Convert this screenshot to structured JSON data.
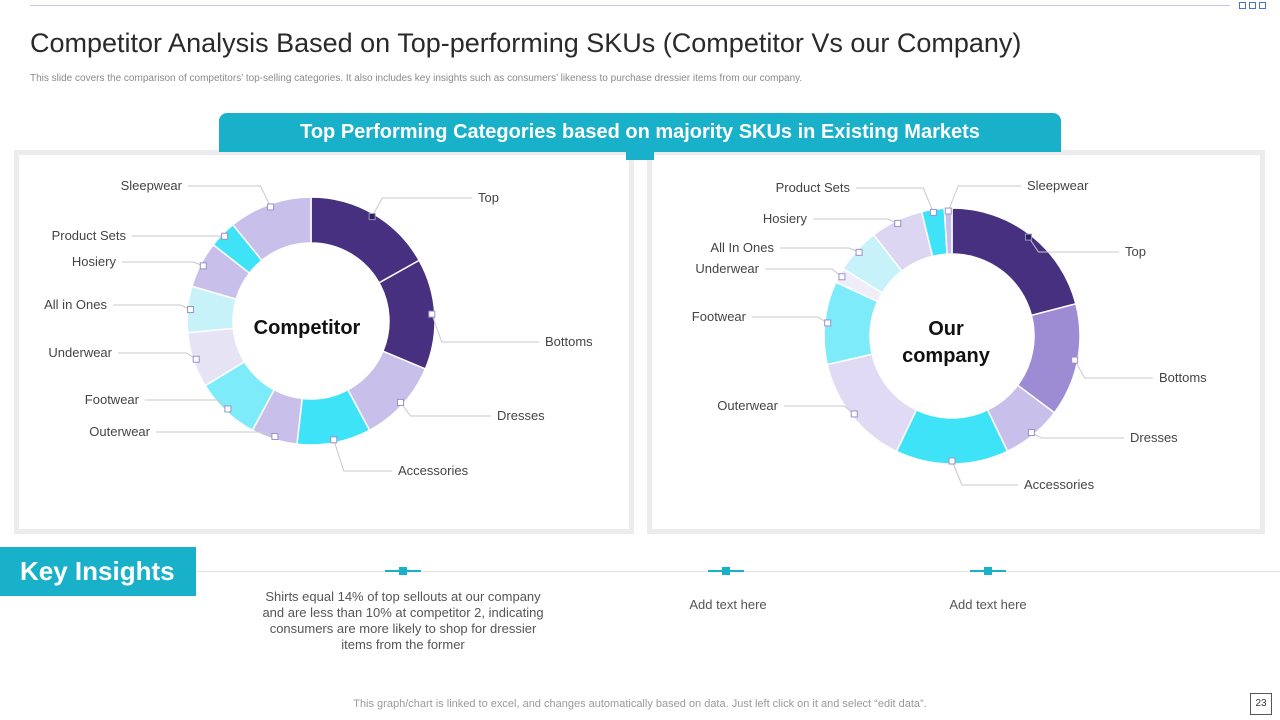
{
  "slide": {
    "title": "Competitor Analysis Based on Top-performing SKUs (Competitor Vs our Company)",
    "subtitle": "This slide covers the comparison of competitors’ top-selling categories. It also includes key insights such as consumers’ likeness to purchase dressier items from our company.",
    "banner": "Top Performing Categories  based on majority SKUs in Existing Markets",
    "footer_note": "This graph/chart is linked to excel,  and changes automatically based on data. Just left click on it and select “edit data”.",
    "page_number": "23"
  },
  "chart_data": [
    {
      "type": "pie",
      "variant": "donut",
      "center_label": "Competitor",
      "title": "",
      "categories": [
        "Top",
        "Bottoms",
        "Dresses",
        "Accessories",
        "Outerwear",
        "Footwear",
        "Underwear",
        "All in Ones",
        "Hosiery",
        "Product Sets",
        "Sleepwear"
      ],
      "values": [
        14,
        12,
        9,
        8,
        5,
        7,
        6,
        5,
        5,
        3,
        9
      ],
      "colors": [
        "#46307f",
        "#46307f",
        "#c8bfea",
        "#3fe3f7",
        "#c8bfea",
        "#7debf9",
        "#e6e3f5",
        "#c7f2f9",
        "#c8bfea",
        "#3fe3f7",
        "#c8bfea"
      ]
    },
    {
      "type": "pie",
      "variant": "donut",
      "center_label": "Our company",
      "title": "",
      "categories": [
        "Top",
        "Bottoms",
        "Dresses",
        "Accessories",
        "Outerwear",
        "Footwear",
        "Underwear",
        "All In Ones",
        "Hosiery",
        "Product Sets",
        "Sleepwear"
      ],
      "values": [
        22,
        15,
        8,
        15,
        15,
        11,
        2,
        6,
        7,
        3,
        1
      ],
      "colors": [
        "#46307f",
        "#9d8bd4",
        "#c8bfea",
        "#3fe3f7",
        "#e0daf4",
        "#7debf9",
        "#efedf7",
        "#c7f2f9",
        "#dcd6f2",
        "#3fe3f7",
        "#c8bfea"
      ]
    }
  ],
  "key_insights": {
    "heading": "Key Insights",
    "items": [
      "Shirts equal 14% of top sellouts at our company and are less than 10% at competitor 2, indicating consumers are more likely to shop for dressier items from the former",
      "Add text here",
      "Add text here"
    ]
  }
}
